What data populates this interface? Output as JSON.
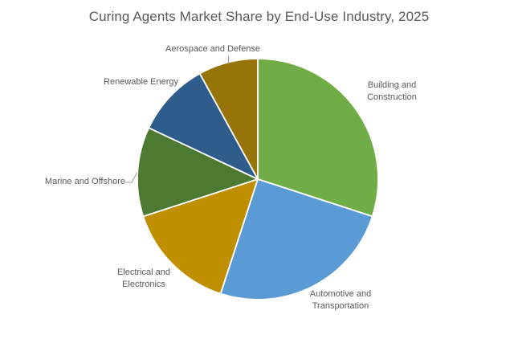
{
  "chart_data": {
    "type": "pie",
    "title": "Curing Agents Market Share by End-Use Industry, 2025",
    "categories": [
      "Building and Construction",
      "Automotive and Transportation",
      "Electrical and Electronics",
      "Marine and Offshore",
      "Renewable Energy",
      "Aerospace and Defense"
    ],
    "values": [
      30,
      25,
      15,
      12,
      10,
      8
    ],
    "value_unit": "percent-market-share",
    "colors": [
      "#70AD47",
      "#5B9BD5",
      "#BF8F00",
      "#4D7A31",
      "#2E5D8C",
      "#97740A"
    ],
    "start_angle_deg": 0,
    "direction": "clockwise",
    "legend": "none",
    "label_style": "category-names-outside",
    "leader_lines": [
      "Aerospace and Defense",
      "Marine and Offshore"
    ],
    "title_color": "#595959",
    "label_color": "#595959",
    "separator_color": "#FFFFFF"
  }
}
